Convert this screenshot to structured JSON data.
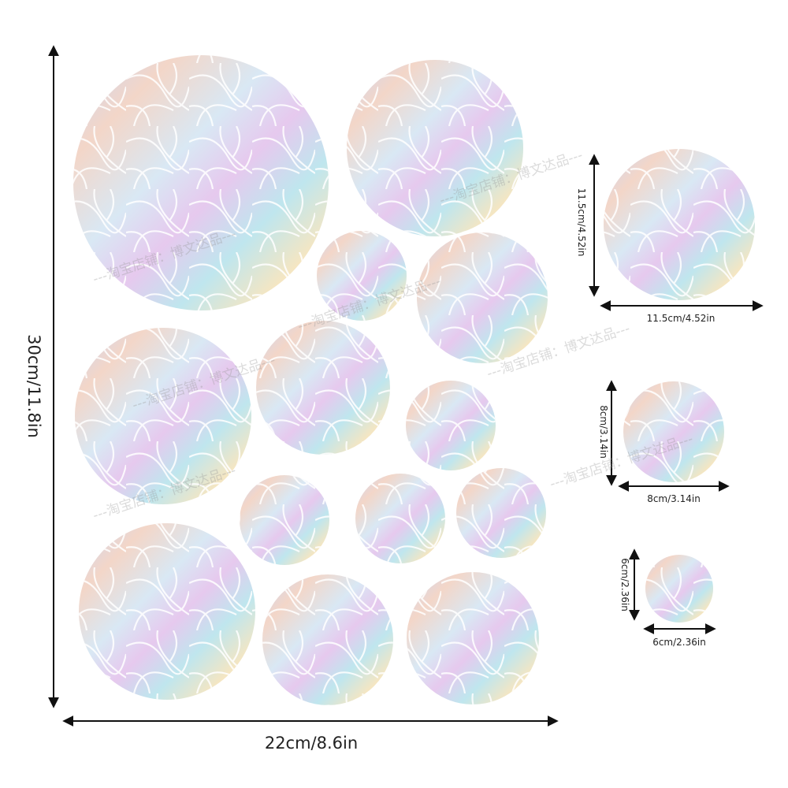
{
  "dimensions": {
    "height": "30cm/11.8in",
    "width": "22cm/8.6in"
  },
  "sizes": [
    {
      "vertical": "11.5cm/4.52in",
      "horizontal": "11.5cm/4.52in"
    },
    {
      "vertical": "8cm/3.14in",
      "horizontal": "8cm/3.14in"
    },
    {
      "vertical": "6cm/2.36in",
      "horizontal": "6cm/2.36in"
    }
  ],
  "watermark": "---淘宝店铺：博文达品---"
}
